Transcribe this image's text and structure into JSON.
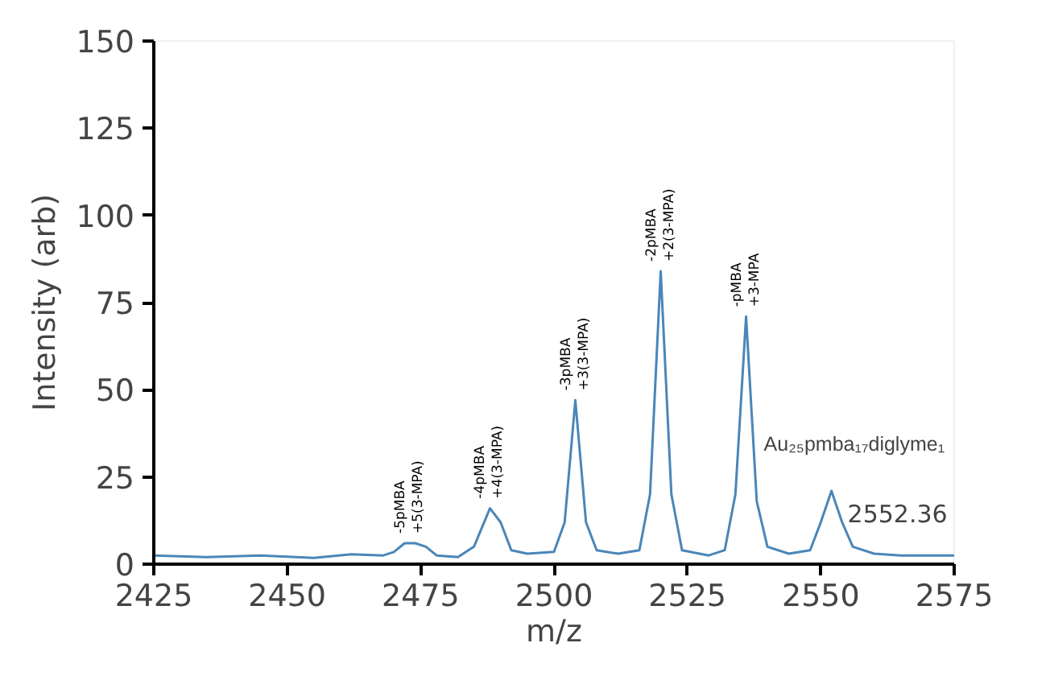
{
  "chart_data": {
    "type": "line",
    "xlabel": "m/z",
    "ylabel": "Intensity (arb)",
    "x": [
      2425,
      2435,
      2445,
      2455,
      2462,
      2468,
      2470,
      2472,
      2474,
      2476,
      2478,
      2482,
      2485,
      2488,
      2490,
      2492,
      2495,
      2500,
      2502,
      2504,
      2506,
      2508,
      2512,
      2516,
      2518,
      2520,
      2522,
      2524,
      2529,
      2532,
      2534,
      2536,
      2538,
      2540,
      2544,
      2548,
      2550,
      2552,
      2554,
      2556,
      2560,
      2565,
      2575
    ],
    "series": [
      {
        "color": "#4a86b8",
        "values": [
          2.5,
          2,
          2.5,
          1.8,
          2.8,
          2.5,
          3.5,
          6,
          6,
          5,
          2.5,
          2,
          5,
          16,
          12,
          4,
          3,
          3.5,
          12,
          47,
          12,
          4,
          3,
          4,
          20,
          84,
          20,
          4,
          2.5,
          4,
          20,
          71,
          18,
          5,
          3,
          4,
          12,
          21,
          12,
          5,
          3,
          2.5,
          2.5
        ]
      }
    ],
    "xlim": [
      2425,
      2575
    ],
    "xticks": [
      2425,
      2450,
      2475,
      2500,
      2525,
      2550,
      2575
    ],
    "ylim": [
      0,
      150
    ],
    "yticks": [
      0,
      25,
      50,
      75,
      100,
      125,
      150
    ],
    "grid": false,
    "legend": false,
    "marker": "none",
    "line_style": "solid",
    "annotations": [
      {
        "text": "-5pMBA\n+5(3-MPA)",
        "x": 2473,
        "y": 6
      },
      {
        "text": "-4pMBA\n+4(3-MPA)",
        "x": 2488,
        "y": 16
      },
      {
        "text": "-3pMBA\n+3(3-MPA)",
        "x": 2504,
        "y": 47
      },
      {
        "text": "-2pMBA\n+2(3-MPA)",
        "x": 2520,
        "y": 84
      },
      {
        "text": "-pMBA\n+3-MPA",
        "x": 2536,
        "y": 71
      },
      {
        "text": "Au₂₅pmba₁₇diglyme₁",
        "x": 2552,
        "y": 21
      },
      {
        "text": "2552.36",
        "x": 2552,
        "y": 21
      }
    ]
  }
}
